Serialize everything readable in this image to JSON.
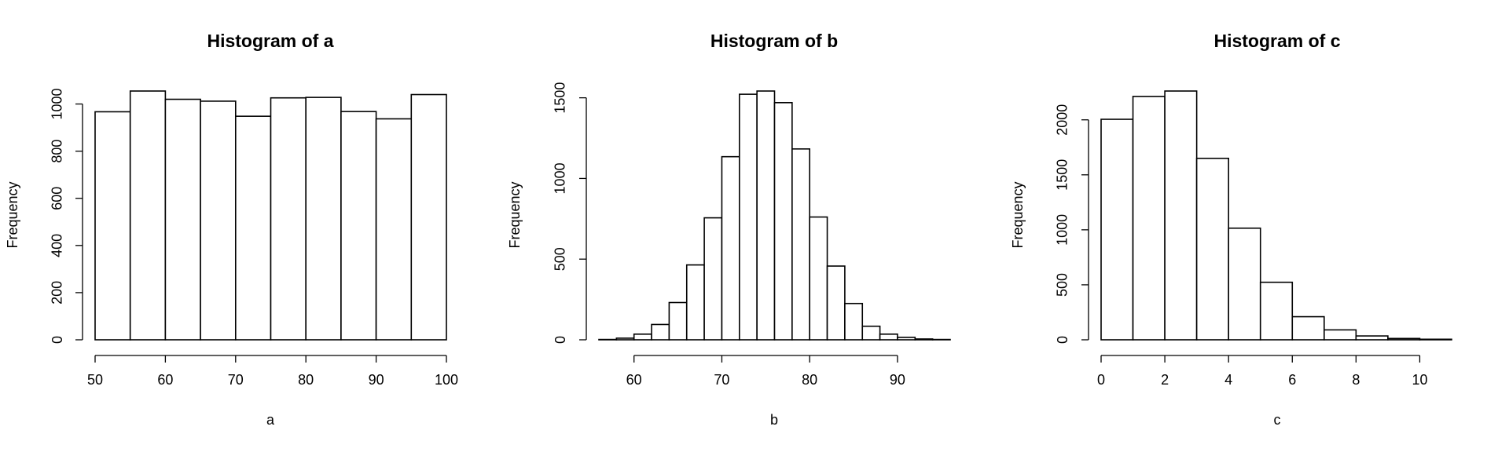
{
  "chart_data": [
    {
      "type": "histogram",
      "title": "Histogram of a",
      "x_label": "a",
      "y_label": "Frequency",
      "bins": [
        50,
        55,
        60,
        65,
        70,
        75,
        80,
        85,
        90,
        95,
        100
      ],
      "values": [
        967,
        1055,
        1020,
        1012,
        948,
        1026,
        1028,
        968,
        937,
        1040
      ],
      "color": "#ffffff",
      "xlim": [
        50,
        100
      ],
      "xticks": [
        50,
        60,
        70,
        80,
        90,
        100
      ],
      "ylim": [
        0,
        1055
      ],
      "yticks": [
        0,
        200,
        400,
        600,
        800,
        1000
      ]
    },
    {
      "type": "histogram",
      "title": "Histogram of b",
      "x_label": "b",
      "y_label": "Frequency",
      "bins": [
        56,
        58,
        60,
        62,
        64,
        66,
        68,
        70,
        72,
        74,
        76,
        78,
        80,
        82,
        84,
        86,
        88,
        90,
        92,
        94,
        96
      ],
      "values": [
        2,
        10,
        35,
        95,
        231,
        464,
        756,
        1135,
        1522,
        1542,
        1470,
        1183,
        761,
        457,
        225,
        84,
        35,
        15,
        5,
        2
      ],
      "color": "#ffffff",
      "xlim": [
        56,
        96
      ],
      "xticks": [
        60,
        70,
        80,
        90
      ],
      "ylim": [
        0,
        1542
      ],
      "yticks": [
        0,
        500,
        1000,
        1500
      ]
    },
    {
      "type": "histogram",
      "title": "Histogram of c",
      "x_label": "c",
      "y_label": "Frequency",
      "bins": [
        0,
        1,
        2,
        3,
        4,
        5,
        6,
        7,
        8,
        9,
        10,
        11
      ],
      "values": [
        2005,
        2213,
        2262,
        1650,
        1015,
        523,
        210,
        90,
        35,
        12,
        5
      ],
      "color": "#ffffff",
      "xlim": [
        0,
        11
      ],
      "xticks": [
        0,
        2,
        4,
        6,
        8,
        10
      ],
      "ylim": [
        0,
        2262
      ],
      "yticks": [
        0,
        500,
        1000,
        1500,
        2000
      ]
    }
  ]
}
